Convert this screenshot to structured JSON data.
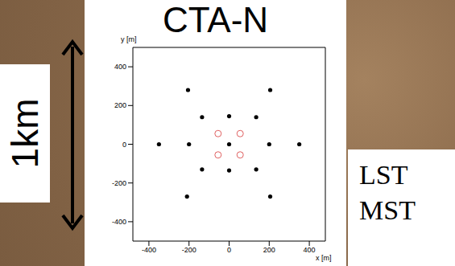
{
  "chart_data": {
    "type": "scatter",
    "title": "CTA-N",
    "x_label": "x [m]",
    "y_label": "y [m]",
    "annotation": "1km",
    "xlim": [
      -480,
      480
    ],
    "ylim": [
      -500,
      500
    ],
    "xticks": [
      -400,
      -200,
      0,
      200,
      400
    ],
    "yticks": [
      -400,
      -200,
      0,
      200,
      400
    ],
    "grid": false,
    "legend": "lower right",
    "series": [
      {
        "name": "LST",
        "color": "#e06060",
        "marker": "open_circle",
        "x": [
          -55,
          55,
          -55,
          55
        ],
        "y": [
          55,
          55,
          -55,
          -55
        ]
      },
      {
        "name": "MST",
        "color": "#000000",
        "marker": "circle",
        "x": [
          0,
          0,
          0,
          -135,
          135,
          -135,
          135,
          -200,
          200,
          -350,
          350,
          -205,
          205,
          -210,
          205
        ],
        "y": [
          0,
          145,
          -135,
          140,
          140,
          -130,
          -130,
          0,
          0,
          0,
          0,
          280,
          280,
          -270,
          -270
        ]
      }
    ]
  }
}
